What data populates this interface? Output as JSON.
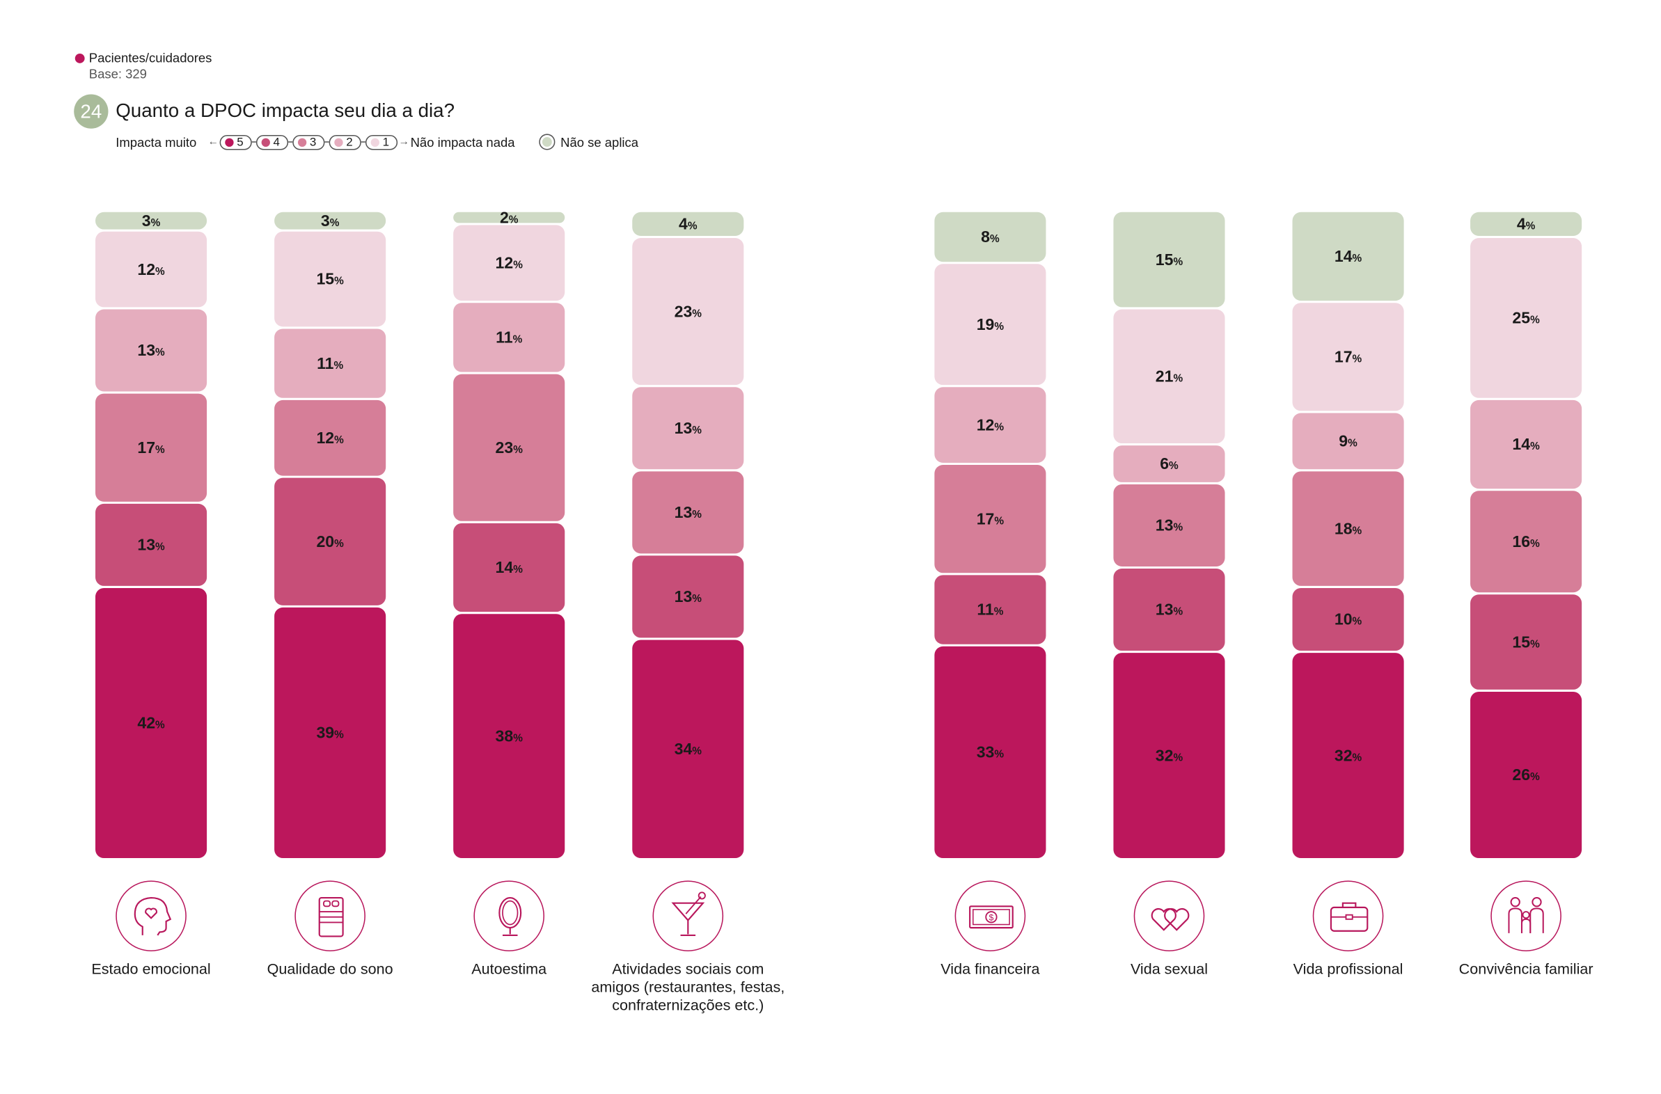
{
  "legend": {
    "respondent_label": "Pacientes/cuidadores",
    "base_label": "Base: 329"
  },
  "question": {
    "number": "24",
    "title": "Quanto a DPOC impacta seu dia a dia?"
  },
  "scale": {
    "left_label": "Impacta muito",
    "right_label": "Não impacta nada",
    "na_label": "Não se aplica",
    "levels": [
      "5",
      "4",
      "3",
      "2",
      "1"
    ]
  },
  "colors": {
    "level_5": "#bc175c",
    "level_4": "#c74e78",
    "level_3": "#d67e98",
    "level_2": "#e5adbe",
    "level_1": "#f0d6df",
    "not_applicable": "#cfdac5",
    "question_badge": "#a9bb9a",
    "icon_stroke": "#b8175c"
  },
  "chart_data": {
    "type": "bar",
    "stacked": true,
    "unit": "%",
    "series_order_bottom_to_top": [
      "5",
      "4",
      "3",
      "2",
      "1",
      "Não se aplica"
    ],
    "categories": [
      {
        "label": "Estado emocional",
        "icon": "head-heart-icon",
        "values": {
          "5": 42,
          "4": 13,
          "3": 17,
          "2": 13,
          "1": 12,
          "Não se aplica": 3
        }
      },
      {
        "label": "Qualidade do sono",
        "icon": "bed-icon",
        "values": {
          "5": 39,
          "4": 20,
          "3": 12,
          "2": 11,
          "1": 15,
          "Não se aplica": 3
        }
      },
      {
        "label": "Autoestima",
        "icon": "mirror-icon",
        "values": {
          "5": 38,
          "4": 14,
          "3": 23,
          "2": 11,
          "1": 12,
          "Não se aplica": 2
        }
      },
      {
        "label": "Atividades sociais com amigos (restaurantes, festas, confraternizações etc.)",
        "icon": "cocktail-icon",
        "values": {
          "5": 34,
          "4": 13,
          "3": 13,
          "2": 13,
          "1": 23,
          "Não se aplica": 4
        }
      },
      {
        "label": "Vida financeira",
        "icon": "banknote-icon",
        "values": {
          "5": 33,
          "4": 11,
          "3": 17,
          "2": 12,
          "1": 19,
          "Não se aplica": 8
        }
      },
      {
        "label": "Vida sexual",
        "icon": "two-hearts-icon",
        "values": {
          "5": 32,
          "4": 13,
          "3": 13,
          "2": 6,
          "1": 21,
          "Não se aplica": 15
        }
      },
      {
        "label": "Vida profissional",
        "icon": "briefcase-icon",
        "values": {
          "5": 32,
          "4": 10,
          "3": 18,
          "2": 9,
          "1": 17,
          "Não se aplica": 14
        }
      },
      {
        "label": "Convivência familiar",
        "icon": "family-icon",
        "values": {
          "5": 26,
          "4": 15,
          "3": 16,
          "2": 14,
          "1": 25,
          "Não se aplica": 4
        }
      }
    ]
  }
}
